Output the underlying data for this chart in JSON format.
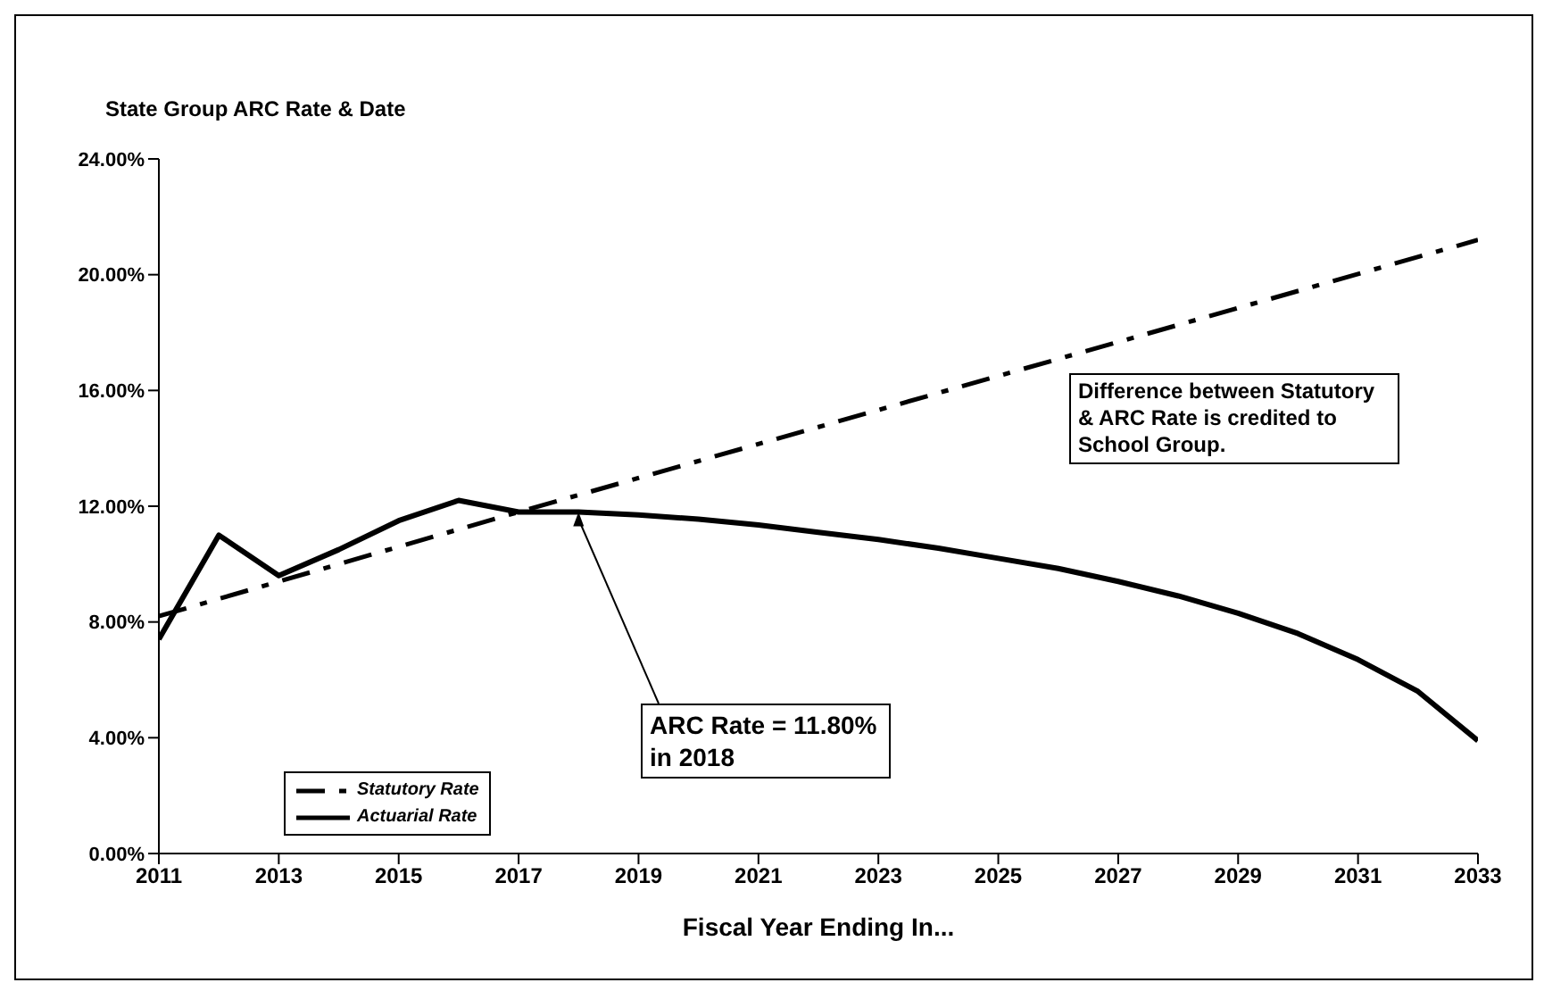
{
  "chart_data": {
    "type": "line",
    "title": "State Group ARC Rate & Date",
    "xlabel": "Fiscal Year Ending In...",
    "series": [
      {
        "name": "Statutory Rate",
        "color": "#000000",
        "line_style": "dashed",
        "x": [
          2011,
          2017,
          2033
        ],
        "values": [
          8.2,
          11.8,
          21.2
        ]
      },
      {
        "name": "Actuarial Rate",
        "color": "#000000",
        "line_style": "solid",
        "x": [
          2011,
          2012,
          2013,
          2014,
          2015,
          2016,
          2017,
          2018,
          2019,
          2020,
          2021,
          2022,
          2023,
          2024,
          2025,
          2026,
          2027,
          2028,
          2029,
          2030,
          2031,
          2032,
          2033
        ],
        "values": [
          7.4,
          11.0,
          9.6,
          10.5,
          11.5,
          12.2,
          11.8,
          11.8,
          11.7,
          11.55,
          11.35,
          11.1,
          10.85,
          10.55,
          10.2,
          9.85,
          9.4,
          8.9,
          8.3,
          7.6,
          6.7,
          5.6,
          3.9
        ]
      }
    ],
    "xlim": [
      2011,
      2033
    ],
    "xticks": [
      2011,
      2013,
      2015,
      2017,
      2019,
      2021,
      2023,
      2025,
      2027,
      2029,
      2031,
      2033
    ],
    "ylim": [
      0,
      24
    ],
    "yticks": [
      {
        "value": 0,
        "label": "0.00%"
      },
      {
        "value": 4,
        "label": "4.00%"
      },
      {
        "value": 8,
        "label": "8.00%"
      },
      {
        "value": 12,
        "label": "12.00%"
      },
      {
        "value": 16,
        "label": "16.00%"
      },
      {
        "value": 20,
        "label": "20.00%"
      },
      {
        "value": 24,
        "label": "24.00%"
      }
    ],
    "grid": false,
    "legend": "bottom left",
    "marker": "none",
    "annotations": [
      {
        "text": "ARC Rate = 11.80% in 2018",
        "x": 2018,
        "y": 11.8
      },
      "Difference between Statutory & ARC Rate is credited to School Group."
    ]
  }
}
